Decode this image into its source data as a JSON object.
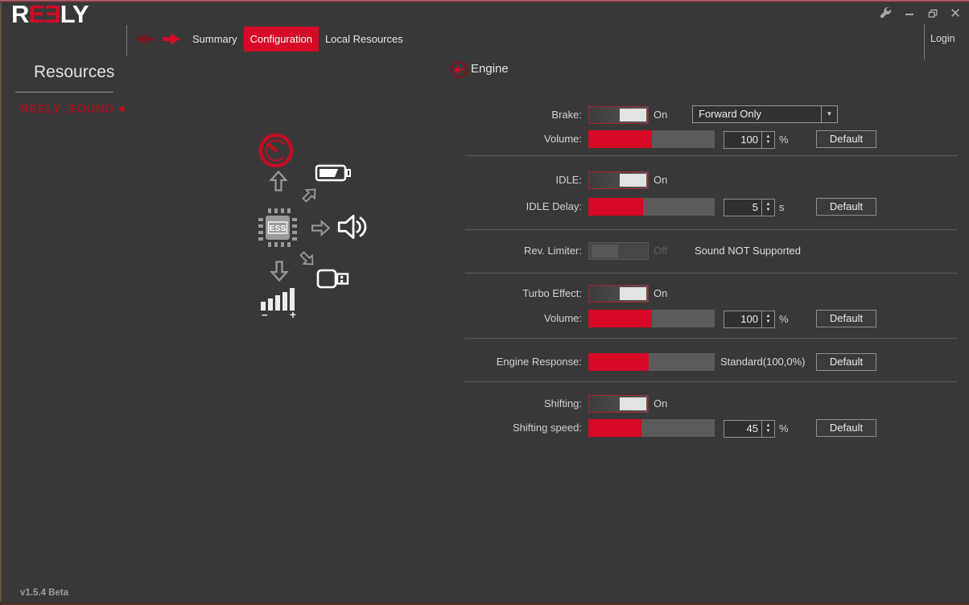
{
  "window": {
    "logo": {
      "r": "R",
      "e1": "E",
      "e2": "Ǝ",
      "ly": "LY"
    },
    "version": "v1.5.4 Beta",
    "login_label": "Login"
  },
  "nav": {
    "tabs": [
      {
        "label": "Summary"
      },
      {
        "label": "Configuration"
      },
      {
        "label": "Local Resources"
      }
    ],
    "active_tab": "Configuration"
  },
  "sidebar": {
    "title": "Resources",
    "items": [
      {
        "label": "REELY_SOUND"
      }
    ]
  },
  "diagram": {
    "chip_label": "ESS"
  },
  "icons": {
    "spin_up": "▲",
    "spin_down": "▼",
    "dropdown_arrow": "▼",
    "resource_marker": "◀",
    "volume_minus": "−",
    "volume_plus": "+"
  },
  "colors": {
    "accent_red": "#d60926",
    "dark_red": "#7a1522",
    "slider_track": "#5b5b5b",
    "background": "#383838"
  },
  "engine": {
    "title": "Engine",
    "default_label": "Default",
    "rows": {
      "brake": {
        "label": "Brake:",
        "state": "On"
      },
      "brake_mode": {
        "value": "Forward Only"
      },
      "brake_volume": {
        "label": "Volume:",
        "fill": 50,
        "value": "100",
        "unit": "%"
      },
      "idle": {
        "label": "IDLE:",
        "state": "On"
      },
      "idle_delay": {
        "label": "IDLE Delay:",
        "fill": 43,
        "value": "5",
        "unit": "s"
      },
      "rev_limiter": {
        "label": "Rev. Limiter:",
        "state": "Off",
        "note": "Sound NOT Supported"
      },
      "turbo": {
        "label": "Turbo Effect:",
        "state": "On"
      },
      "turbo_volume": {
        "label": "Volume:",
        "fill": 50,
        "value": "100",
        "unit": "%"
      },
      "engine_response": {
        "label": "Engine Response:",
        "fill": 48,
        "value_text": "Standard(100,0%)"
      },
      "shifting": {
        "label": "Shifting:",
        "state": "On"
      },
      "shifting_speed": {
        "label": "Shifting speed:",
        "fill": 42,
        "value": "45",
        "unit": "%"
      }
    }
  }
}
